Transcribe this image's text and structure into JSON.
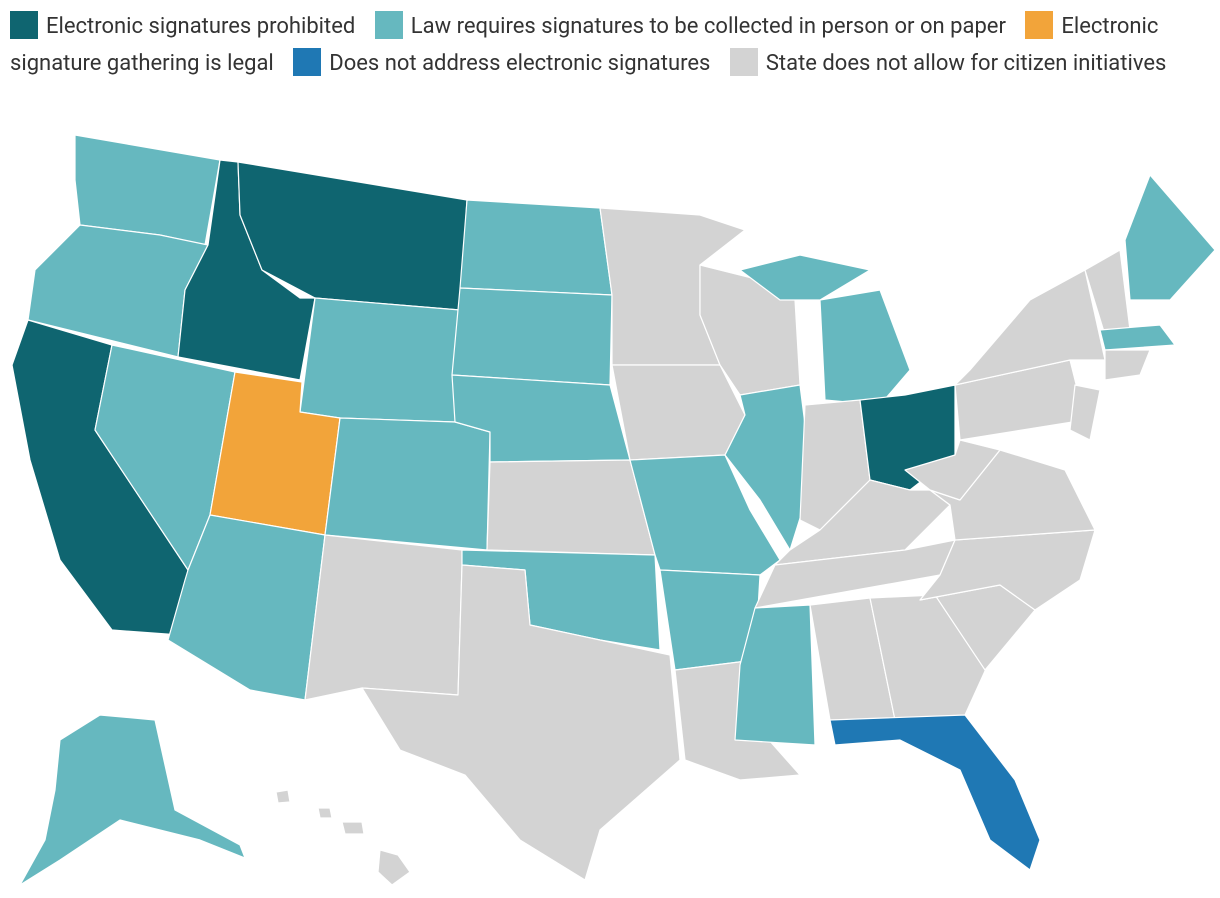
{
  "legend": [
    {
      "label": "Electronic signatures prohibited",
      "color": "#0f6570"
    },
    {
      "label": "Law requires signatures to be collected in person or on paper",
      "color": "#66b8bf"
    },
    {
      "label": "Electronic signature gathering is legal",
      "color": "#f2a43a"
    },
    {
      "label": "Does not address electronic signatures",
      "color": "#1f78b4"
    },
    {
      "label": "State does not allow for citizen initiatives",
      "color": "#d3d3d3"
    }
  ]
}
